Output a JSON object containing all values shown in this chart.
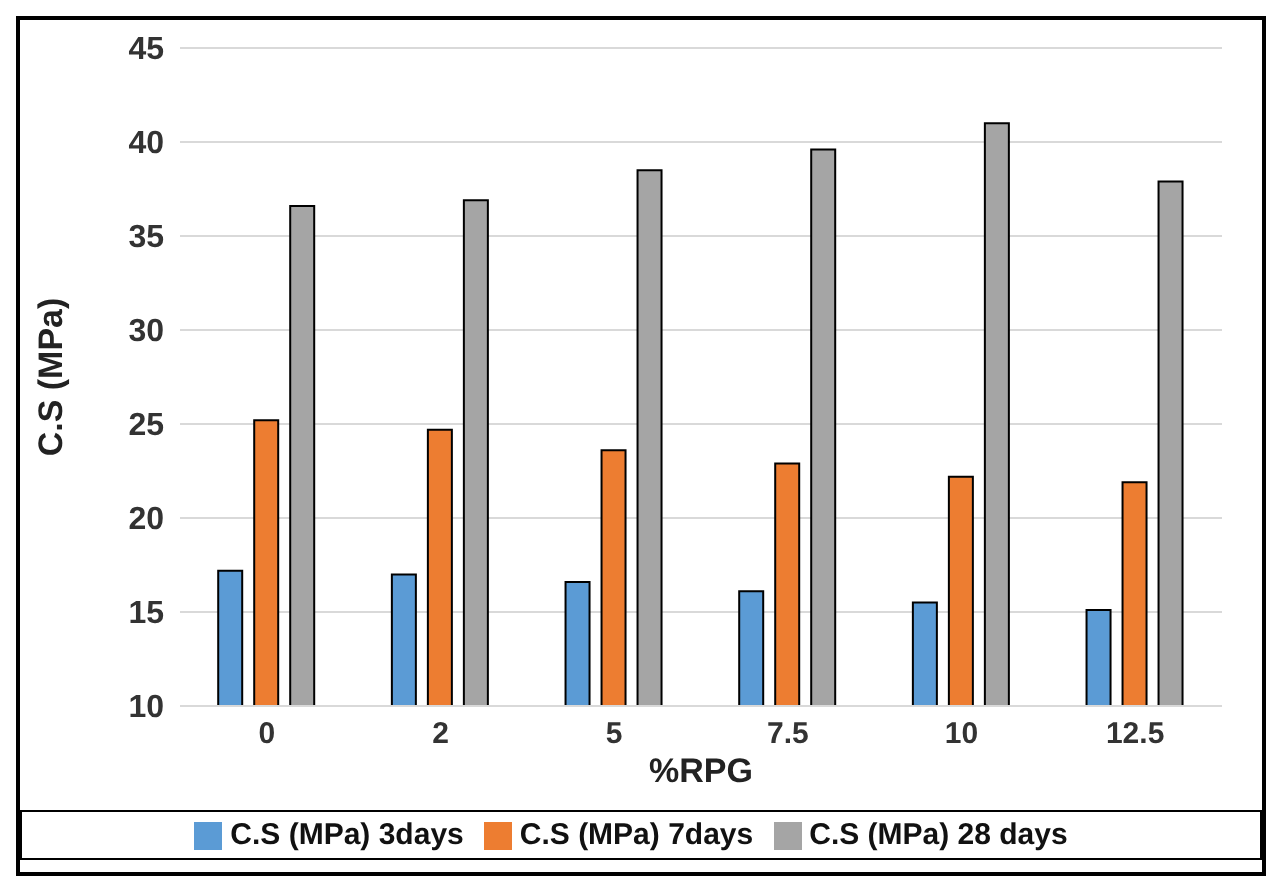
{
  "chart_data": {
    "type": "bar",
    "xlabel": "%RPG",
    "ylabel": "C.S (MPa)",
    "categories": [
      "0",
      "2",
      "5",
      "7.5",
      "10",
      "12.5"
    ],
    "series": [
      {
        "name": "C.S (MPa) 3days",
        "color": "#5b9bd5",
        "values": [
          17.2,
          17.0,
          16.6,
          16.1,
          15.5,
          15.1
        ]
      },
      {
        "name": "C.S (MPa) 7days",
        "color": "#ed7d31",
        "values": [
          25.2,
          24.7,
          23.6,
          22.9,
          22.2,
          21.9
        ]
      },
      {
        "name": "C.S (MPa) 28 days",
        "color": "#a5a5a5",
        "values": [
          36.6,
          36.9,
          38.5,
          39.6,
          41.0,
          37.9
        ]
      }
    ],
    "ylim": [
      10,
      45
    ],
    "yticks": [
      10,
      15,
      20,
      25,
      30,
      35,
      40,
      45
    ],
    "grid": "y",
    "legend": "bottom"
  }
}
